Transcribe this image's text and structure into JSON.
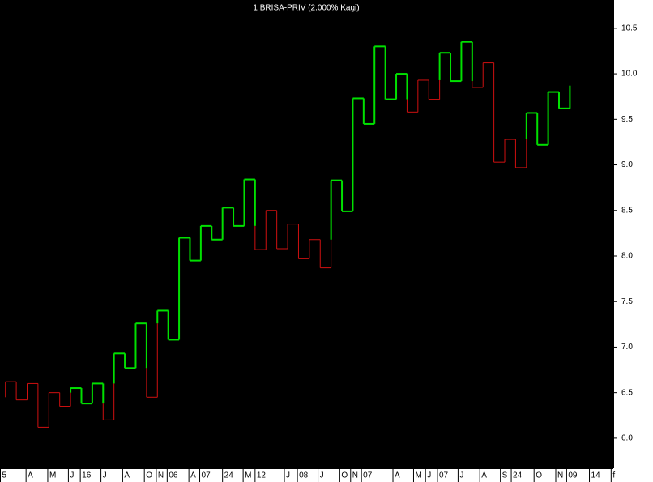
{
  "chart_data": {
    "type": "kagi",
    "title": "1 BRISA-PRIV (2.000% Kagi)",
    "values": [
      6.45,
      6.62,
      6.42,
      6.6,
      6.12,
      6.5,
      6.35,
      6.55,
      6.38,
      6.6,
      6.2,
      6.93,
      6.77,
      7.26,
      6.45,
      7.4,
      7.08,
      8.2,
      7.95,
      8.33,
      8.18,
      8.53,
      8.33,
      8.84,
      8.07,
      8.5,
      8.08,
      8.35,
      7.97,
      8.18,
      7.87,
      8.83,
      8.49,
      9.73,
      9.45,
      10.3,
      9.72,
      10.0,
      9.58,
      9.93,
      9.72,
      10.23,
      9.92,
      10.35,
      9.85,
      10.12,
      9.03,
      9.28,
      8.97,
      9.57,
      9.22,
      9.8,
      9.62,
      9.87
    ],
    "yang_color": "#00e000",
    "yin_color": "#d01010",
    "ylim": [
      5.67,
      10.81
    ],
    "yticks": [
      {
        "value": 6,
        "label": "6.0"
      },
      6.5,
      {
        "value": 7,
        "label": "7.0"
      },
      7.5,
      {
        "value": 8,
        "label": "8.0"
      },
      8.5,
      {
        "value": 9,
        "label": "9.0"
      },
      9.5,
      {
        "value": 10,
        "label": "10.0"
      },
      10.5
    ],
    "xlim": [
      -0.5,
      56
    ],
    "xticks": [
      {
        "value": -0.5,
        "label": "5"
      },
      {
        "value": 1.9,
        "label": "A"
      },
      {
        "value": 3.9,
        "label": "M"
      },
      {
        "value": 5.8,
        "label": "J"
      },
      {
        "value": 6.9,
        "label": "16"
      },
      {
        "value": 8.8,
        "label": "J"
      },
      {
        "value": 10.8,
        "label": "A"
      },
      {
        "value": 12.8,
        "label": "O"
      },
      {
        "value": 13.9,
        "label": "N"
      },
      {
        "value": 14.9,
        "label": "06"
      },
      {
        "value": 16.9,
        "label": "A"
      },
      {
        "value": 17.9,
        "label": "07"
      },
      {
        "value": 20.0,
        "label": "24"
      },
      {
        "value": 21.9,
        "label": "M"
      },
      {
        "value": 23.0,
        "label": "12"
      },
      {
        "value": 25.7,
        "label": "J"
      },
      {
        "value": 26.9,
        "label": "08"
      },
      {
        "value": 28.8,
        "label": "J"
      },
      {
        "value": 30.8,
        "label": "O"
      },
      {
        "value": 31.8,
        "label": "N"
      },
      {
        "value": 32.8,
        "label": "07"
      },
      {
        "value": 35.7,
        "label": "A"
      },
      {
        "value": 37.6,
        "label": "M"
      },
      {
        "value": 38.7,
        "label": "J"
      },
      {
        "value": 39.8,
        "label": "07"
      },
      {
        "value": 41.7,
        "label": "J"
      },
      {
        "value": 43.7,
        "label": "A"
      },
      {
        "value": 45.6,
        "label": "S"
      },
      {
        "value": 46.6,
        "label": "24"
      },
      {
        "value": 48.7,
        "label": "O"
      },
      {
        "value": 50.7,
        "label": "N"
      },
      {
        "value": 51.7,
        "label": "09"
      },
      {
        "value": 53.8,
        "label": "14"
      },
      {
        "value": 55.8,
        "label": "f"
      }
    ]
  }
}
